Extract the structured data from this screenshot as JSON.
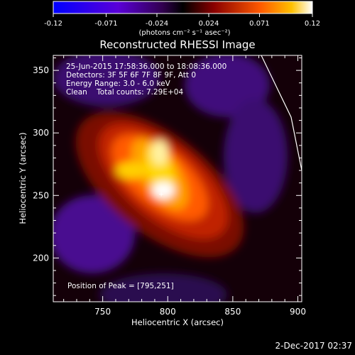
{
  "colorbar": {
    "ticks": [
      {
        "value": -0.12,
        "label": "-0.12"
      },
      {
        "value": -0.071,
        "label": "-0.071"
      },
      {
        "value": -0.024,
        "label": "-0.024"
      },
      {
        "value": 0.024,
        "label": "0.024"
      },
      {
        "value": 0.071,
        "label": "0.071"
      },
      {
        "value": 0.12,
        "label": "0.12"
      }
    ],
    "units_label": "(photons cm⁻² s⁻¹ asec⁻²)"
  },
  "chart_data": {
    "type": "heatmap",
    "title": "Reconstructed RHESSI Image",
    "xlabel": "Heliocentric X (arcsec)",
    "ylabel": "Heliocentric Y (arcsec)",
    "xlim": [
      712,
      903
    ],
    "ylim": [
      165,
      362
    ],
    "value_range": [
      -0.12,
      0.12
    ],
    "peak": {
      "x": 795,
      "y": 251
    },
    "xticks": [
      750,
      800,
      850,
      900
    ],
    "yticks": [
      200,
      250,
      300,
      350
    ],
    "info_lines": [
      "25-Jun-2015 17:58:36.000 to 18:08:36.000",
      "Detectors: 3F 5F 6F 7F 8F 9F, Att 0",
      "Energy Range: 3.0 - 6.0 keV",
      "Clean    Total counts: 7.29E+04"
    ],
    "peak_label": "Position of Peak = [795,251]"
  },
  "footer": {
    "timestamp": "2-Dec-2017 02:37"
  }
}
